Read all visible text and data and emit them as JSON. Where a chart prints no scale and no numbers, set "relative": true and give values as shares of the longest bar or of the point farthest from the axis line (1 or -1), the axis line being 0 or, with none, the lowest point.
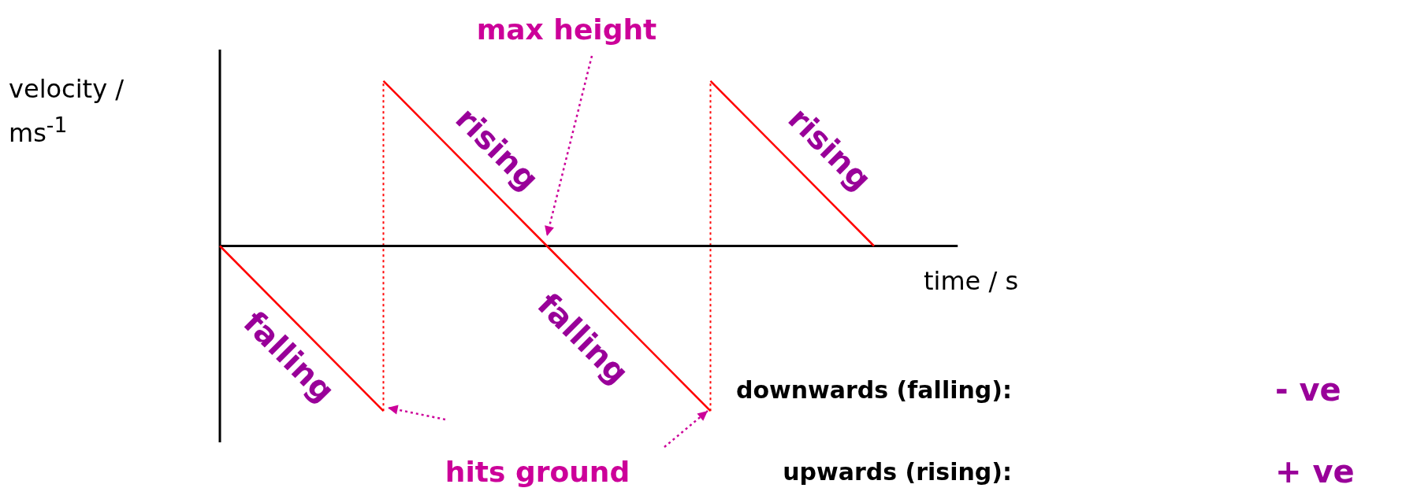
{
  "chart_data": {
    "type": "line",
    "relative": true,
    "xlabel": "time / s",
    "ylabel": "velocity / ms$^{-1}$",
    "categories": [
      null,
      null,
      null,
      null,
      null
    ],
    "series": [
      {
        "color": "#ff0000",
        "values": [
          0,
          -1,
          null,
          null,
          null
        ]
      },
      {
        "color": "#ff0000",
        "values": [
          null,
          1,
          0,
          -1,
          null
        ]
      },
      {
        "color": "#ff0000",
        "values": [
          null,
          null,
          null,
          1,
          0
        ]
      }
    ],
    "annotations": [
      "rising",
      "rising",
      "falling",
      "falling",
      "max height",
      "hits ground",
      "downwards (falling):",
      "- ve",
      "upwards (rising):",
      "+ ve"
    ]
  }
}
